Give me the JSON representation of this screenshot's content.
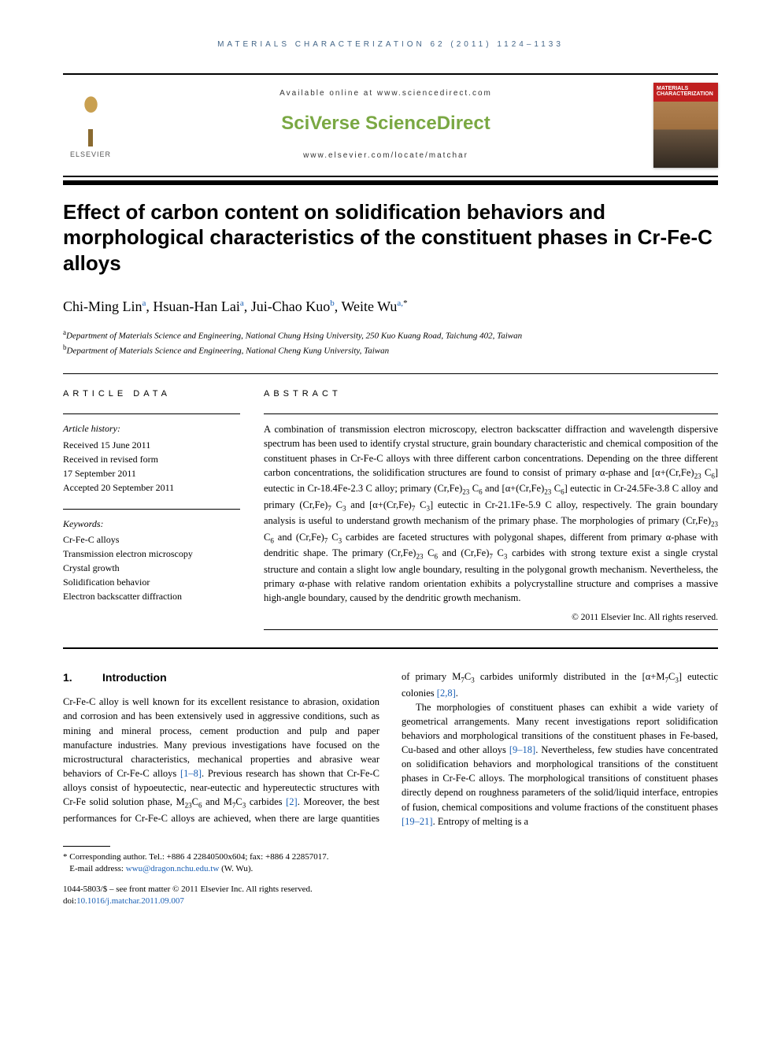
{
  "running_head": "MATERIALS CHARACTERIZATION 62 (2011) 1124–1133",
  "masthead": {
    "available": "Available online at www.sciencedirect.com",
    "brand": "SciVerse ScienceDirect",
    "journal_url": "www.elsevier.com/locate/matchar",
    "publisher": "ELSEVIER",
    "cover_title": "MATERIALS CHARACTERIZATION"
  },
  "title": "Effect of carbon content on solidification behaviors and morphological characteristics of the constituent phases in Cr-Fe-C alloys",
  "authors_html": "Chi-Ming Lin<sup>a</sup>, Hsuan-Han Lai<sup>a</sup>, Jui-Chao Kuo<sup>b</sup>, Weite Wu<sup>a,</sup><sup class=\"star-sup\">*</sup>",
  "affiliations": {
    "a": "Department of Materials Science and Engineering, National Chung Hsing University, 250 Kuo Kuang Road, Taichung 402, Taiwan",
    "b": "Department of Materials Science and Engineering, National Cheng Kung University, Taiwan"
  },
  "article_data_label": "ARTICLE DATA",
  "abstract_label": "ABSTRACT",
  "history": {
    "heading": "Article history:",
    "received": "Received 15 June 2011",
    "revised": "Received in revised form",
    "revised_date": "17 September 2011",
    "accepted": "Accepted 20 September 2011"
  },
  "keywords": {
    "heading": "Keywords:",
    "items": [
      "Cr-Fe-C alloys",
      "Transmission electron microscopy",
      "Crystal growth",
      "Solidification behavior",
      "Electron backscatter diffraction"
    ]
  },
  "abstract_html": "A combination of transmission electron microscopy, electron backscatter diffraction and wavelength dispersive spectrum has been used to identify crystal structure, grain boundary characteristic and chemical composition of the constituent phases in Cr-Fe-C alloys with three different carbon concentrations. Depending on the three different carbon concentrations, the solidification structures are found to consist of primary α-phase and [α+(Cr,Fe)<sub>23</sub> C<sub>6</sub>] eutectic in Cr-18.4Fe-2.3 C alloy; primary (Cr,Fe)<sub>23</sub> C<sub>6</sub> and [α+(Cr,Fe)<sub>23</sub> C<sub>6</sub>] eutectic in Cr-24.5Fe-3.8 C alloy and primary (Cr,Fe)<sub>7</sub> C<sub>3</sub> and [α+(Cr,Fe)<sub>7</sub> C<sub>3</sub>] eutectic in Cr-21.1Fe-5.9 C alloy, respectively. The grain boundary analysis is useful to understand growth mechanism of the primary phase. The morphologies of primary (Cr,Fe)<sub>23</sub> C<sub>6</sub> and (Cr,Fe)<sub>7</sub> C<sub>3</sub> carbides are faceted structures with polygonal shapes, different from primary α-phase with dendritic shape. The primary (Cr,Fe)<sub>23</sub> C<sub>6</sub> and (Cr,Fe)<sub>7</sub> C<sub>3</sub> carbides with strong texture exist a single crystal structure and contain a slight low angle boundary, resulting in the polygonal growth mechanism. Nevertheless, the primary α-phase with relative random orientation exhibits a polycrystalline structure and comprises a massive high-angle boundary, caused by the dendritic growth mechanism.",
  "copyright": "© 2011 Elsevier Inc. All rights reserved.",
  "intro": {
    "number": "1.",
    "heading": "Introduction",
    "p1_html": "Cr-Fe-C alloy is well known for its excellent resistance to abrasion, oxidation and corrosion and has been extensively used in aggressive conditions, such as mining and mineral process, cement production and pulp and paper manufacture industries. Many previous investigations have focused on the microstructural characteristics, mechanical properties and abrasive wear behaviors of Cr-Fe-C alloys <span class=\"ref-link\">[1–8]</span>. Previous research has shown that Cr-Fe-C alloys consist of hypoeutectic, near-eutectic and hypereutectic structures with Cr-Fe solid solution phase, M<sub>23</sub>C<sub>6</sub> and M<sub>7</sub>C<sub>3</sub> carbides <span class=\"ref-link\">[2]</span>. Moreover, the best performances for Cr-Fe-C alloys are achieved, when there are large quantities of primary M<sub>7</sub>C<sub>3</sub> carbides uniformly distributed in the [α+M<sub>7</sub>C<sub>3</sub>] eutectic colonies <span class=\"ref-link\">[2,8]</span>.",
    "p2_html": "The morphologies of constituent phases can exhibit a wide variety of geometrical arrangements. Many recent investigations report solidification behaviors and morphological transitions of the constituent phases in Fe-based, Cu-based and other alloys <span class=\"ref-link\">[9–18]</span>. Nevertheless, few studies have concentrated on solidification behaviors and morphological transitions of the constituent phases in Cr-Fe-C alloys. The morphological transitions of constituent phases directly depend on roughness parameters of the solid/liquid interface, entropies of fusion, chemical compositions and volume fractions of the constituent phases <span class=\"ref-link\">[19–21]</span>. Entropy of melting is a"
  },
  "footnotes": {
    "corr": "* Corresponding author. Tel.: +886 4 22840500x604; fax: +886 4 22857017.",
    "email_label": "E-mail address: ",
    "email": "wwu@dragon.nchu.edu.tw",
    "email_tail": " (W. Wu)."
  },
  "doi": {
    "line1": "1044-5803/$ – see front matter © 2011 Elsevier Inc. All rights reserved.",
    "prefix": "doi:",
    "value": "10.1016/j.matchar.2011.09.007"
  },
  "colors": {
    "link": "#1a5fb4",
    "brand_green": "#7aa843",
    "head_blue": "#446688"
  }
}
